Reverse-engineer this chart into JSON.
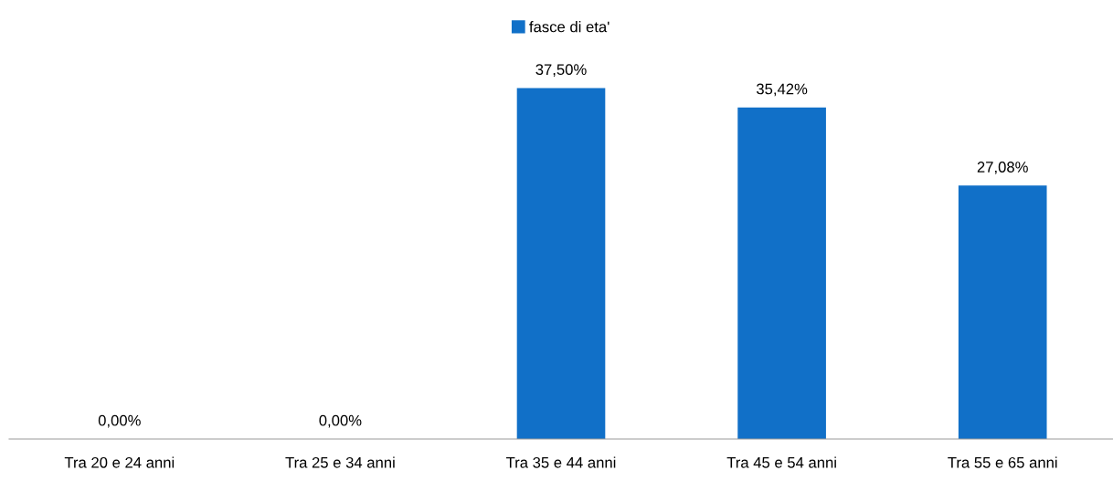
{
  "chart_data": {
    "type": "bar",
    "categories": [
      "Tra 20 e 24 anni",
      "Tra 25 e 34 anni",
      "Tra 35 e 44 anni",
      "Tra 45 e 54 anni",
      "Tra 55 e 65 anni"
    ],
    "series": [
      {
        "name": "fasce di eta'",
        "color": "#1170c8",
        "values": [
          0,
          0,
          37.5,
          35.42,
          27.08
        ],
        "value_labels": [
          "0,00%",
          "0,00%",
          "37,50%",
          "35,42%",
          "27,08%"
        ]
      }
    ],
    "legend": "top",
    "grid": false
  }
}
